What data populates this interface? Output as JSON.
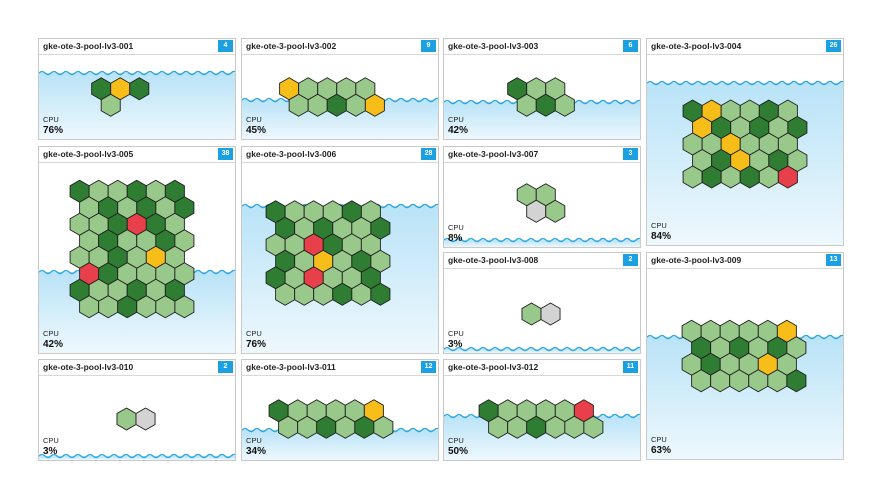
{
  "colors": {
    "accent": "#1ba1e2",
    "border": "#c9c9c9",
    "water_top": "#b9e3f7",
    "water_bottom": "#eef8fd",
    "wave": "#2ea6de",
    "hex_dark": "#2e7d32",
    "hex_light": "#98c98a",
    "hex_yellow": "#f7bd19",
    "hex_red": "#e8404a",
    "hex_gray": "#d3d3d3",
    "hex_stroke": "#1f1f1f"
  },
  "cpu_label": "CPU",
  "nodes": [
    {
      "name": "gke-ote-3-pool-lv3-001",
      "pods": 4,
      "cpu": "76%",
      "cpu_level": 0.76,
      "cols": 3,
      "pattern": [
        "d",
        "y",
        "d",
        "l"
      ]
    },
    {
      "name": "gke-ote-3-pool-lv3-002",
      "pods": 9,
      "cpu": "45%",
      "cpu_level": 0.45,
      "cols": 5,
      "pattern": [
        "y",
        "l",
        "l",
        "l",
        "l",
        "l",
        "l",
        "d",
        "l",
        "y"
      ]
    },
    {
      "name": "gke-ote-3-pool-lv3-003",
      "pods": 6,
      "cpu": "42%",
      "cpu_level": 0.42,
      "cols": 3,
      "pattern": [
        "d",
        "l",
        "l",
        "l",
        "d",
        "l"
      ]
    },
    {
      "name": "gke-ote-3-pool-lv3-004",
      "pods": 26,
      "cpu": "84%",
      "cpu_level": 0.84,
      "cols": 6,
      "pattern": [
        "d",
        "y",
        "l",
        "l",
        "d",
        "l",
        "y",
        "d",
        "l",
        "d",
        "l",
        "d",
        "l",
        "l",
        "y",
        "l",
        "l",
        "l",
        "l",
        "d",
        "y",
        "l",
        "d",
        "l",
        "l",
        "d",
        "l",
        "d",
        "l",
        "r"
      ]
    },
    {
      "name": "gke-ote-3-pool-lv3-005",
      "pods": 38,
      "cpu": "42%",
      "cpu_level": 0.42,
      "cols": 6,
      "pattern": [
        "d",
        "l",
        "l",
        "d",
        "l",
        "d",
        "l",
        "d",
        "l",
        "d",
        "l",
        "d",
        "l",
        "l",
        "d",
        "r",
        "d",
        "l",
        "l",
        "d",
        "l",
        "l",
        "d",
        "l",
        "l",
        "l",
        "d",
        "l",
        "y",
        "l",
        "r",
        "d",
        "l",
        "l",
        "l",
        "l",
        "d",
        "l",
        "l",
        "d",
        "l",
        "d",
        "l",
        "l",
        "d",
        "l",
        "l",
        "l"
      ]
    },
    {
      "name": "gke-ote-3-pool-lv3-006",
      "pods": 28,
      "cpu": "76%",
      "cpu_level": 0.76,
      "cols": 6,
      "pattern": [
        "d",
        "l",
        "l",
        "l",
        "d",
        "l",
        "d",
        "l",
        "d",
        "l",
        "l",
        "d",
        "l",
        "l",
        "r",
        "d",
        "l",
        "l",
        "d",
        "l",
        "y",
        "l",
        "d",
        "l",
        "d",
        "l",
        "r",
        "l",
        "l",
        "d",
        "l",
        "l",
        "l",
        "d",
        "l",
        "d"
      ]
    },
    {
      "name": "gke-ote-3-pool-lv3-007",
      "pods": 3,
      "cpu": "8%",
      "cpu_level": 0.08,
      "cols": 2,
      "pattern": [
        "l",
        "l",
        "g",
        "l"
      ]
    },
    {
      "name": "gke-ote-3-pool-lv3-008",
      "pods": 2,
      "cpu": "3%",
      "cpu_level": 0.03,
      "cols": 2,
      "pattern": [
        "l",
        "g"
      ]
    },
    {
      "name": "gke-ote-3-pool-lv3-009",
      "pods": 13,
      "cpu": "63%",
      "cpu_level": 0.63,
      "cols": 6,
      "pattern": [
        "l",
        "l",
        "l",
        "l",
        "l",
        "y",
        "d",
        "l",
        "d",
        "l",
        "d",
        "l",
        "l",
        "d",
        "l",
        "l",
        "y",
        "l",
        "l",
        "l",
        "l",
        "l",
        "l",
        "d"
      ]
    },
    {
      "name": "gke-ote-3-pool-lv3-010",
      "pods": 2,
      "cpu": "3%",
      "cpu_level": 0.03,
      "cols": 2,
      "pattern": [
        "l",
        "g"
      ]
    },
    {
      "name": "gke-ote-3-pool-lv3-011",
      "pods": 12,
      "cpu": "34%",
      "cpu_level": 0.34,
      "cols": 6,
      "pattern": [
        "d",
        "l",
        "l",
        "l",
        "l",
        "y",
        "l",
        "l",
        "d",
        "l",
        "d",
        "l"
      ]
    },
    {
      "name": "gke-ote-3-pool-lv3-012",
      "pods": 11,
      "cpu": "50%",
      "cpu_level": 0.5,
      "cols": 6,
      "pattern": [
        "d",
        "l",
        "l",
        "l",
        "l",
        "r",
        "l",
        "l",
        "d",
        "l",
        "l",
        "l"
      ]
    }
  ]
}
